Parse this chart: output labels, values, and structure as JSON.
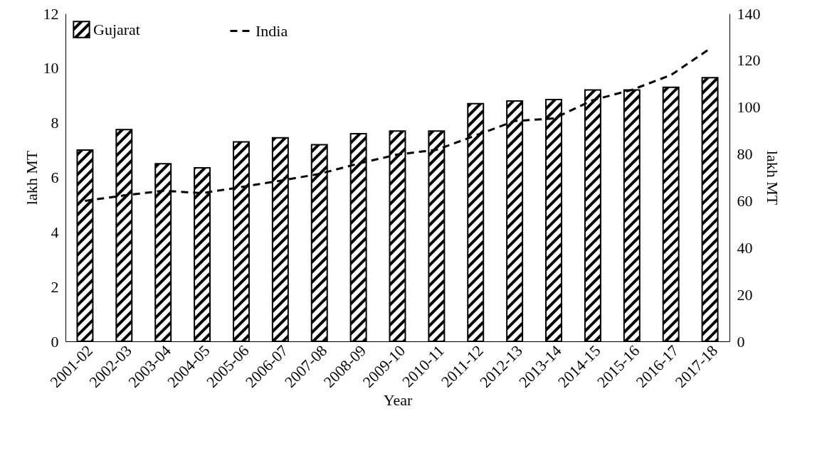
{
  "chart_data": {
    "type": "bar",
    "xlabel": "Year",
    "ylabel": "lakh MT",
    "y2label": "lakh MT",
    "categories": [
      "2001-02",
      "2002-03",
      "2003-04",
      "2004-05",
      "2005-06",
      "2006-07",
      "2007-08",
      "2008-09",
      "2009-10",
      "2010-11",
      "2011-12",
      "2012-13",
      "2013-14",
      "2014-15",
      "2015-16",
      "2016-17",
      "2017-18"
    ],
    "series": [
      {
        "name": "Gujarat",
        "color": "#000000",
        "values": [
          7.0,
          7.75,
          6.5,
          6.35,
          7.3,
          7.45,
          7.2,
          7.6,
          7.7,
          7.7,
          8.7,
          8.8,
          8.85,
          9.2,
          9.2,
          9.3,
          9.65
        ]
      },
      {
        "name": "India",
        "type": "line",
        "axis": "y2",
        "color": "#000000",
        "line_style": "dashed",
        "values": [
          60,
          62.3,
          64.3,
          63.3,
          65.9,
          68.6,
          71.5,
          75.9,
          79.8,
          81.8,
          87.9,
          94.1,
          95.2,
          103,
          107.4,
          113.7,
          125
        ]
      }
    ],
    "ylim": [
      0,
      12
    ],
    "yticks": [
      0,
      2,
      4,
      6,
      8,
      10,
      12
    ],
    "y2lim": [
      0,
      140
    ],
    "y2ticks": [
      0,
      20,
      40,
      60,
      80,
      100,
      120,
      140
    ],
    "legend": "top left",
    "grid": false
  }
}
